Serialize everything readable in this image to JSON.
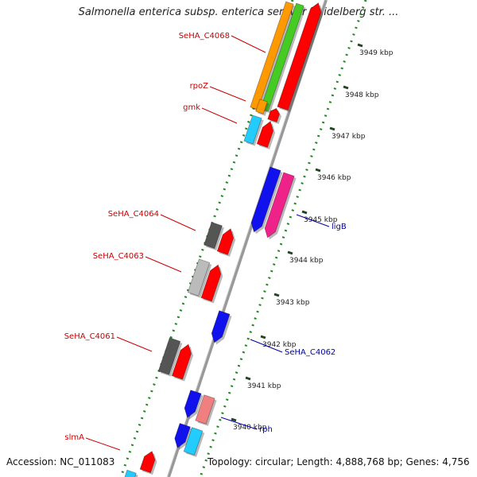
{
  "title": "Salmonella enterica subsp. enterica serovar Heidelberg str. ...",
  "accession": "Accession: NC_011083",
  "topology": "Topology: circular; Length: 4,888,768 bp; Genes: 4,756",
  "colors": {
    "red": "#ff0000",
    "orange": "#ff9900",
    "green": "#44cc22",
    "cyan": "#22ccff",
    "blue": "#1111ee",
    "magenta": "#ee2288",
    "dark_gray": "#555555",
    "light_gray": "#bbbbbb",
    "salmon": "#f08080",
    "dotted_ring": "#228822",
    "backbone": "#888888",
    "label_left": "#cc0000",
    "label_right": "#0000aa"
  },
  "ticks": [
    {
      "label": "3949 kbp"
    },
    {
      "label": "3948 kbp"
    },
    {
      "label": "3947 kbp"
    },
    {
      "label": "3946 kbp"
    },
    {
      "label": "3945 kbp"
    },
    {
      "label": "3944 kbp"
    },
    {
      "label": "3943 kbp"
    },
    {
      "label": "3942 kbp"
    },
    {
      "label": "3941 kbp"
    },
    {
      "label": "3940 kbp"
    }
  ],
  "gene_labels_left": [
    "SeHA_C4068",
    "rpoZ",
    "gmk",
    "SeHA_C4064",
    "SeHA_C4063",
    "SeHA_C4061",
    "slmA"
  ],
  "gene_labels_right": [
    "ligB",
    "SeHA_C4062",
    "rph"
  ]
}
